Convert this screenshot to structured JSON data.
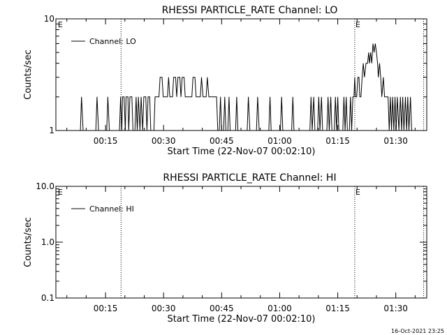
{
  "footer_timestamp": "16-Oct-2021 23:25",
  "chart_data": [
    {
      "type": "line",
      "title": "RHESSI PARTICLE_RATE Channel: LO",
      "xlabel": "Start Time (22-Nov-07 00:02:10)",
      "ylabel": "Counts/sec",
      "x_unit": "minutes of day (HH:MM)",
      "xlim": [
        2.17,
        98.0
      ],
      "ylim": [
        1,
        10
      ],
      "yscale": "log",
      "x_ticks": [
        {
          "t": 15,
          "label": "00:15"
        },
        {
          "t": 30,
          "label": "00:30"
        },
        {
          "t": 45,
          "label": "00:45"
        },
        {
          "t": 60,
          "label": "01:00"
        },
        {
          "t": 75,
          "label": "01:15"
        },
        {
          "t": 90,
          "label": "01:30"
        }
      ],
      "y_ticks": [
        {
          "v": 1,
          "label": "1"
        },
        {
          "v": 10,
          "label": "10"
        }
      ],
      "y_minor_ticks": [
        2,
        3,
        4,
        5,
        6,
        7,
        8,
        9
      ],
      "vlines": [
        19.0,
        79.4,
        97.2
      ],
      "markers": [
        {
          "t": 2.7,
          "label": "E"
        },
        {
          "t": 79.6,
          "label": "E"
        }
      ],
      "legend": {
        "position": "top-left",
        "entries": [
          "Channel: LO"
        ]
      },
      "series": [
        {
          "name": "Channel: LO",
          "color": "#000000",
          "points": [
            [
              2.17,
              1
            ],
            [
              8.5,
              1
            ],
            [
              8.8,
              2
            ],
            [
              9.2,
              1
            ],
            [
              12.5,
              1
            ],
            [
              12.8,
              2
            ],
            [
              13.2,
              1
            ],
            [
              15.3,
              1
            ],
            [
              15.6,
              2
            ],
            [
              16.0,
              1
            ],
            [
              18.6,
              1
            ],
            [
              18.9,
              2
            ],
            [
              19.2,
              1
            ],
            [
              19.4,
              2
            ],
            [
              19.8,
              2
            ],
            [
              20.1,
              1
            ],
            [
              20.3,
              2
            ],
            [
              20.8,
              2
            ],
            [
              21.0,
              1
            ],
            [
              21.3,
              2
            ],
            [
              21.8,
              2
            ],
            [
              22.1,
              1
            ],
            [
              22.6,
              1
            ],
            [
              22.9,
              2
            ],
            [
              23.2,
              1
            ],
            [
              23.5,
              2
            ],
            [
              23.9,
              1
            ],
            [
              24.2,
              2
            ],
            [
              24.6,
              1
            ],
            [
              24.9,
              2
            ],
            [
              25.4,
              2
            ],
            [
              25.7,
              1
            ],
            [
              26.0,
              2
            ],
            [
              26.4,
              2
            ],
            [
              26.7,
              1
            ],
            [
              27.5,
              1
            ],
            [
              27.8,
              2
            ],
            [
              28.8,
              2
            ],
            [
              29.1,
              3
            ],
            [
              29.6,
              3
            ],
            [
              29.9,
              2
            ],
            [
              31.0,
              2
            ],
            [
              31.3,
              3
            ],
            [
              31.6,
              2
            ],
            [
              32.3,
              2
            ],
            [
              32.6,
              3
            ],
            [
              33.1,
              3
            ],
            [
              33.4,
              2
            ],
            [
              33.7,
              3
            ],
            [
              34.2,
              3
            ],
            [
              34.5,
              2
            ],
            [
              34.8,
              3
            ],
            [
              35.3,
              3
            ],
            [
              35.6,
              2
            ],
            [
              37.3,
              2
            ],
            [
              37.6,
              3
            ],
            [
              38.1,
              3
            ],
            [
              38.4,
              2
            ],
            [
              39.5,
              2
            ],
            [
              39.8,
              3
            ],
            [
              40.2,
              2
            ],
            [
              41.0,
              2
            ],
            [
              41.3,
              3
            ],
            [
              41.7,
              2
            ],
            [
              43.7,
              2
            ],
            [
              44.0,
              1
            ],
            [
              44.4,
              1
            ],
            [
              44.7,
              2
            ],
            [
              45.0,
              1
            ],
            [
              45.5,
              1
            ],
            [
              45.8,
              2
            ],
            [
              46.1,
              1
            ],
            [
              46.6,
              1
            ],
            [
              46.9,
              2
            ],
            [
              47.2,
              1
            ],
            [
              48.6,
              1
            ],
            [
              48.9,
              2
            ],
            [
              49.2,
              1
            ],
            [
              51.6,
              1
            ],
            [
              51.9,
              2
            ],
            [
              52.3,
              1
            ],
            [
              54.0,
              1
            ],
            [
              54.3,
              2
            ],
            [
              54.7,
              1
            ],
            [
              57.2,
              1
            ],
            [
              57.5,
              2
            ],
            [
              57.8,
              1
            ],
            [
              60.2,
              1
            ],
            [
              60.5,
              2
            ],
            [
              60.8,
              1
            ],
            [
              63.1,
              1
            ],
            [
              63.4,
              2
            ],
            [
              63.7,
              1
            ],
            [
              67.8,
              1
            ],
            [
              68.1,
              2
            ],
            [
              68.4,
              1
            ],
            [
              68.8,
              2
            ],
            [
              69.1,
              1
            ],
            [
              69.8,
              1
            ],
            [
              70.1,
              2
            ],
            [
              70.4,
              1
            ],
            [
              70.8,
              2
            ],
            [
              71.1,
              1
            ],
            [
              72.2,
              1
            ],
            [
              72.5,
              2
            ],
            [
              72.8,
              1
            ],
            [
              73.2,
              2
            ],
            [
              73.5,
              1
            ],
            [
              74.1,
              1
            ],
            [
              74.4,
              2
            ],
            [
              74.7,
              1
            ],
            [
              75.0,
              2
            ],
            [
              75.3,
              1
            ],
            [
              76.3,
              1
            ],
            [
              76.6,
              2
            ],
            [
              76.9,
              1
            ],
            [
              77.2,
              2
            ],
            [
              77.5,
              1
            ],
            [
              78.0,
              1
            ],
            [
              78.3,
              2
            ],
            [
              78.6,
              1
            ],
            [
              78.9,
              2
            ],
            [
              79.2,
              2
            ],
            [
              79.4,
              3
            ],
            [
              79.6,
              2
            ],
            [
              79.9,
              2
            ],
            [
              80.2,
              3
            ],
            [
              80.5,
              3
            ],
            [
              80.7,
              2
            ],
            [
              81.0,
              2
            ],
            [
              81.3,
              3
            ],
            [
              81.6,
              4
            ],
            [
              81.9,
              3
            ],
            [
              82.3,
              4
            ],
            [
              82.7,
              4
            ],
            [
              83.0,
              5
            ],
            [
              83.2,
              4
            ],
            [
              83.5,
              5
            ],
            [
              83.8,
              4
            ],
            [
              84.1,
              6
            ],
            [
              84.4,
              5
            ],
            [
              84.7,
              6
            ],
            [
              85.0,
              5
            ],
            [
              85.3,
              4
            ],
            [
              85.5,
              3
            ],
            [
              85.8,
              4
            ],
            [
              86.1,
              3
            ],
            [
              86.4,
              2
            ],
            [
              86.8,
              3
            ],
            [
              87.1,
              2
            ],
            [
              88.0,
              2
            ],
            [
              88.3,
              1
            ],
            [
              88.6,
              2
            ],
            [
              88.9,
              1
            ],
            [
              89.2,
              2
            ],
            [
              89.5,
              1
            ],
            [
              89.8,
              2
            ],
            [
              90.1,
              1
            ],
            [
              90.4,
              2
            ],
            [
              90.8,
              1
            ],
            [
              91.2,
              2
            ],
            [
              91.5,
              1
            ],
            [
              91.8,
              2
            ],
            [
              92.1,
              1
            ],
            [
              92.5,
              2
            ],
            [
              92.8,
              1
            ],
            [
              93.1,
              2
            ],
            [
              93.4,
              1
            ],
            [
              93.8,
              2
            ],
            [
              94.1,
              1
            ],
            [
              98.0,
              1
            ]
          ]
        }
      ]
    },
    {
      "type": "line",
      "title": "RHESSI PARTICLE_RATE Channel: HI",
      "xlabel": "Start Time (22-Nov-07 00:02:10)",
      "ylabel": "Counts/sec",
      "x_unit": "minutes of day (HH:MM)",
      "xlim": [
        2.17,
        98.0
      ],
      "ylim": [
        0.1,
        10.0
      ],
      "yscale": "log",
      "x_ticks": [
        {
          "t": 15,
          "label": "00:15"
        },
        {
          "t": 30,
          "label": "00:30"
        },
        {
          "t": 45,
          "label": "00:45"
        },
        {
          "t": 60,
          "label": "01:00"
        },
        {
          "t": 75,
          "label": "01:15"
        },
        {
          "t": 90,
          "label": "01:30"
        }
      ],
      "y_ticks": [
        {
          "v": 0.1,
          "label": "0.1"
        },
        {
          "v": 1.0,
          "label": "1.0"
        },
        {
          "v": 10.0,
          "label": "10.0"
        }
      ],
      "y_minor_ticks": [
        0.2,
        0.3,
        0.4,
        0.5,
        0.6,
        0.7,
        0.8,
        0.9,
        2,
        3,
        4,
        5,
        6,
        7,
        8,
        9
      ],
      "vlines": [
        19.0,
        79.4,
        97.2
      ],
      "markers": [
        {
          "t": 2.7,
          "label": "E"
        },
        {
          "t": 79.6,
          "label": "E"
        }
      ],
      "legend": {
        "position": "top-left",
        "entries": [
          "Channel: HI"
        ]
      },
      "series": [
        {
          "name": "Channel: HI",
          "color": "#000000",
          "points": []
        }
      ]
    }
  ]
}
